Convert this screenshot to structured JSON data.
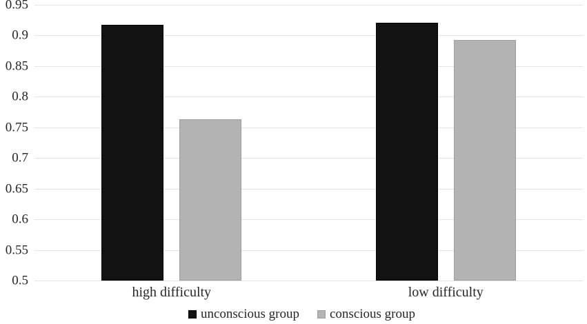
{
  "chart_data": {
    "type": "bar",
    "categories": [
      "high difficulty",
      "low difficulty"
    ],
    "series": [
      {
        "name": "unconscious group",
        "color": "#121212",
        "border": "#000000",
        "values": [
          0.917,
          0.921
        ]
      },
      {
        "name": "conscious group",
        "color": "#b3b3b3",
        "border": "#9e9e9e",
        "values": [
          0.763,
          0.893
        ]
      }
    ],
    "title": "",
    "xlabel": "",
    "ylabel": "",
    "ylim": [
      0.5,
      0.95
    ],
    "ytick_step": 0.05,
    "yticks": [
      "0.95",
      "0.9",
      "0.85",
      "0.8",
      "0.75",
      "0.7",
      "0.65",
      "0.6",
      "0.55",
      "0.5"
    ],
    "grid": true,
    "gridline_color": "#e3e3e3",
    "legend_position": "bottom",
    "background_color": "#ffffff"
  }
}
